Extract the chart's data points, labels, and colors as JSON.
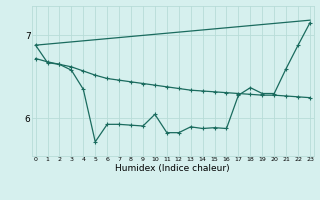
{
  "xlabel": "Humidex (Indice chaleur)",
  "x_ticks": [
    0,
    1,
    2,
    3,
    4,
    5,
    6,
    7,
    8,
    9,
    10,
    11,
    12,
    13,
    14,
    15,
    16,
    17,
    18,
    19,
    20,
    21,
    22,
    23
  ],
  "y_ticks": [
    6,
    7
  ],
  "ylim": [
    5.55,
    7.35
  ],
  "xlim": [
    -0.3,
    23.3
  ],
  "bg_color": "#d6f0ee",
  "line_color": "#1a6b5e",
  "grid_color": "#b8dcd8",
  "series": [
    {
      "name": "line1_straight",
      "x": [
        0,
        23
      ],
      "y": [
        6.88,
        7.18
      ]
    },
    {
      "name": "line2_flat",
      "x": [
        0,
        1,
        2,
        3,
        4,
        5,
        6,
        7,
        8,
        9,
        10,
        11,
        12,
        13,
        14,
        15,
        16,
        17,
        18,
        19,
        20,
        21,
        22,
        23
      ],
      "y": [
        6.72,
        6.68,
        6.65,
        6.62,
        6.57,
        6.52,
        6.48,
        6.46,
        6.44,
        6.42,
        6.4,
        6.38,
        6.36,
        6.34,
        6.33,
        6.32,
        6.31,
        6.3,
        6.29,
        6.28,
        6.28,
        6.27,
        6.26,
        6.25
      ]
    },
    {
      "name": "line3_valley",
      "x": [
        0,
        1,
        2,
        3,
        4,
        5,
        6,
        7,
        8,
        9,
        10,
        11,
        12,
        13,
        14,
        15,
        16,
        17,
        18,
        19,
        20,
        21,
        22,
        23
      ],
      "y": [
        6.88,
        6.67,
        6.65,
        6.58,
        6.35,
        5.72,
        5.93,
        5.93,
        5.92,
        5.91,
        6.05,
        5.83,
        5.83,
        5.9,
        5.88,
        5.89,
        5.88,
        6.28,
        6.37,
        6.3,
        6.3,
        6.6,
        6.88,
        7.15
      ]
    }
  ]
}
